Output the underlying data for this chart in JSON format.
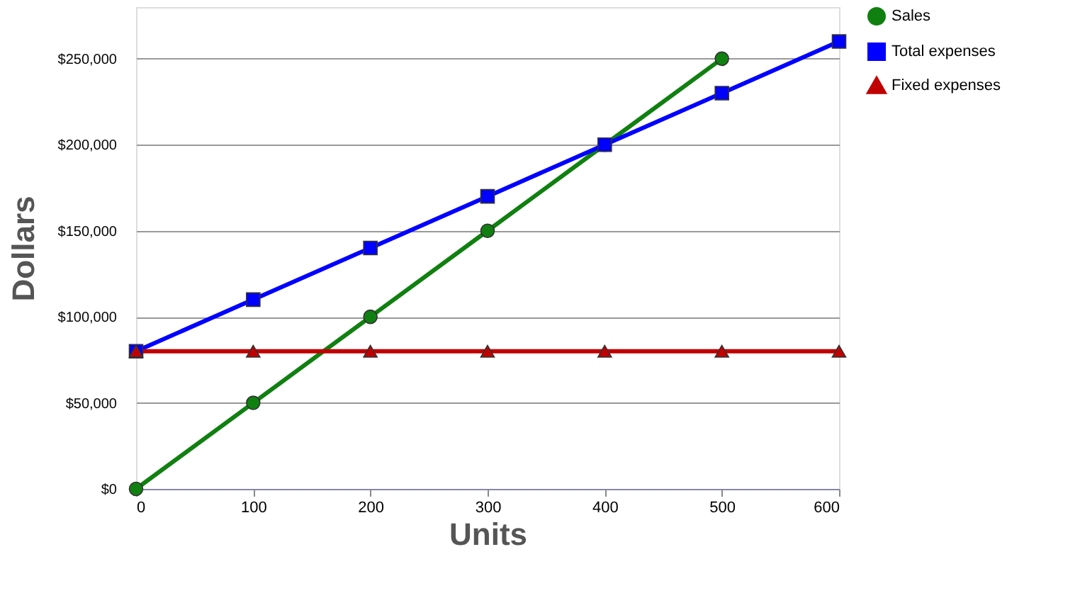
{
  "chart_data": {
    "type": "line",
    "xlabel": "Units",
    "ylabel": "Dollars",
    "x": [
      0,
      100,
      200,
      300,
      400,
      500,
      600
    ],
    "series": [
      {
        "name": "Sales",
        "color": "#108010",
        "marker": "circle",
        "x": [
          0,
          100,
          200,
          300,
          400,
          500
        ],
        "values": [
          0,
          50000,
          100000,
          150000,
          200000,
          250000
        ]
      },
      {
        "name": "Total expenses",
        "color": "#0000ff",
        "marker": "square",
        "values": [
          80000,
          110000,
          140000,
          170000,
          200000,
          230000,
          260000
        ]
      },
      {
        "name": "Fixed expenses",
        "color": "#c00000",
        "marker": "triangle",
        "values": [
          80000,
          80000,
          80000,
          80000,
          80000,
          80000,
          80000
        ]
      }
    ],
    "xlim": [
      0,
      600
    ],
    "xticks": [
      0,
      100,
      200,
      300,
      400,
      500,
      600
    ],
    "ylim": [
      0,
      280000
    ],
    "yticks": [
      {
        "value": 0,
        "label": "$0"
      },
      {
        "value": 50000,
        "label": "$50,000"
      },
      {
        "value": 100000,
        "label": "$100,000"
      },
      {
        "value": 150000,
        "label": "$150,000"
      },
      {
        "value": 200000,
        "label": "$200,000"
      },
      {
        "value": 250000,
        "label": "$250,000"
      }
    ],
    "grid": "y",
    "legend": "right"
  }
}
